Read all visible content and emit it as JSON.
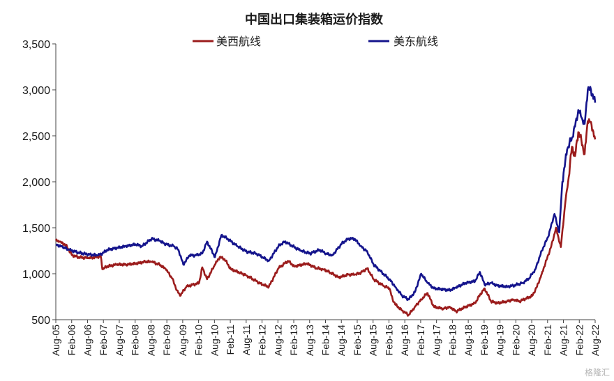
{
  "chart_data": {
    "type": "line",
    "title": "中国出口集装箱运价指数",
    "xlabel": "",
    "ylabel": "",
    "ylim": [
      500,
      3500
    ],
    "yticks": [
      500,
      1000,
      1500,
      2000,
      2500,
      3000,
      3500
    ],
    "ytick_labels": [
      "500",
      "1,000",
      "1,500",
      "2,000",
      "2,500",
      "3,000",
      "3,500"
    ],
    "x_range": [
      2005.583,
      2022.583
    ],
    "xticks": [
      2005.583,
      2006.083,
      2006.583,
      2007.083,
      2007.583,
      2008.083,
      2008.583,
      2009.083,
      2009.583,
      2010.083,
      2010.583,
      2011.083,
      2011.583,
      2012.083,
      2012.583,
      2013.083,
      2013.583,
      2014.083,
      2014.583,
      2015.083,
      2015.583,
      2016.083,
      2016.583,
      2017.083,
      2017.583,
      2018.083,
      2018.583,
      2019.083,
      2019.583,
      2020.083,
      2020.583,
      2021.083,
      2021.583,
      2022.083,
      2022.583
    ],
    "xtick_labels": [
      "Aug-05",
      "Feb-06",
      "Aug-06",
      "Feb-07",
      "Aug-07",
      "Feb-08",
      "Aug-08",
      "Feb-09",
      "Aug-09",
      "Feb-10",
      "Aug-10",
      "Feb-11",
      "Aug-11",
      "Feb-12",
      "Aug-12",
      "Feb-13",
      "Aug-13",
      "Feb-14",
      "Aug-14",
      "Feb-15",
      "Aug-15",
      "Feb-16",
      "Aug-16",
      "Feb-17",
      "Aug-17",
      "Feb-18",
      "Aug-18",
      "Feb-19",
      "Aug-19",
      "Feb-20",
      "Aug-20",
      "Feb-21",
      "Aug-21",
      "Feb-22",
      "Aug-22"
    ],
    "grid": false,
    "legend_position": "top",
    "series": [
      {
        "name": "美西航线",
        "color": "#9b1c1c",
        "x": [
          2005.583,
          2005.7,
          2005.9,
          2006.1,
          2006.3,
          2006.6,
          2006.85,
          2007.0,
          2007.05,
          2007.2,
          2007.5,
          2007.8,
          2008.1,
          2008.4,
          2008.6,
          2008.85,
          2009.05,
          2009.25,
          2009.4,
          2009.5,
          2009.7,
          2009.9,
          2010.1,
          2010.2,
          2010.35,
          2010.6,
          2010.75,
          2010.9,
          2011.1,
          2011.4,
          2011.6,
          2011.9,
          2012.1,
          2012.3,
          2012.6,
          2012.75,
          2012.9,
          2013.1,
          2013.5,
          2013.8,
          2014.0,
          2014.2,
          2014.5,
          2014.8,
          2015.0,
          2015.2,
          2015.4,
          2015.6,
          2015.9,
          2016.1,
          2016.2,
          2016.3,
          2016.5,
          2016.7,
          2016.9,
          2017.1,
          2017.3,
          2017.5,
          2017.8,
          2018.0,
          2018.2,
          2018.5,
          2018.8,
          2018.95,
          2019.1,
          2019.3,
          2019.5,
          2019.8,
          2020.0,
          2020.2,
          2020.4,
          2020.6,
          2020.75,
          2020.9,
          2021.05,
          2021.2,
          2021.35,
          2021.5,
          2021.65,
          2021.75,
          2021.85,
          2021.95,
          2022.05,
          2022.15,
          2022.25,
          2022.35,
          2022.45,
          2022.583
        ],
        "values": [
          1360,
          1350,
          1310,
          1200,
          1180,
          1170,
          1180,
          1190,
          1050,
          1080,
          1100,
          1100,
          1110,
          1130,
          1130,
          1100,
          1050,
          950,
          820,
          760,
          860,
          880,
          900,
          1070,
          940,
          1100,
          1180,
          1160,
          1050,
          1010,
          980,
          920,
          880,
          860,
          1060,
          1100,
          1140,
          1080,
          1110,
          1060,
          1050,
          1020,
          960,
          990,
          990,
          1010,
          1060,
          940,
          870,
          840,
          720,
          660,
          600,
          550,
          640,
          720,
          790,
          640,
          620,
          640,
          590,
          640,
          680,
          770,
          840,
          700,
          680,
          700,
          720,
          700,
          730,
          760,
          860,
          1000,
          1150,
          1300,
          1500,
          1290,
          1800,
          2050,
          2380,
          2280,
          2540,
          2450,
          2300,
          2660,
          2650,
          2460
        ]
      },
      {
        "name": "美东航线",
        "color": "#14148c",
        "x": [
          2005.583,
          2005.8,
          2006.0,
          2006.3,
          2006.6,
          2006.9,
          2007.05,
          2007.2,
          2007.5,
          2007.8,
          2008.1,
          2008.3,
          2008.6,
          2008.85,
          2009.05,
          2009.3,
          2009.45,
          2009.6,
          2009.8,
          2010.0,
          2010.2,
          2010.35,
          2010.6,
          2010.8,
          2011.0,
          2011.3,
          2011.6,
          2011.9,
          2012.1,
          2012.3,
          2012.6,
          2012.8,
          2013.0,
          2013.3,
          2013.6,
          2013.9,
          2014.1,
          2014.3,
          2014.6,
          2014.8,
          2015.0,
          2015.2,
          2015.4,
          2015.6,
          2015.9,
          2016.1,
          2016.3,
          2016.5,
          2016.7,
          2016.9,
          2017.1,
          2017.3,
          2017.5,
          2017.8,
          2018.0,
          2018.2,
          2018.5,
          2018.8,
          2018.95,
          2019.1,
          2019.3,
          2019.5,
          2019.8,
          2020.0,
          2020.3,
          2020.5,
          2020.7,
          2020.9,
          2021.1,
          2021.3,
          2021.45,
          2021.55,
          2021.7,
          2021.85,
          2021.95,
          2022.05,
          2022.15,
          2022.25,
          2022.35,
          2022.45,
          2022.583
        ],
        "values": [
          1320,
          1290,
          1260,
          1230,
          1210,
          1200,
          1220,
          1260,
          1280,
          1300,
          1320,
          1300,
          1380,
          1360,
          1320,
          1300,
          1260,
          1100,
          1200,
          1200,
          1220,
          1350,
          1180,
          1420,
          1380,
          1300,
          1240,
          1220,
          1180,
          1140,
          1300,
          1350,
          1310,
          1250,
          1220,
          1260,
          1220,
          1200,
          1330,
          1380,
          1380,
          1300,
          1240,
          1100,
          1000,
          940,
          850,
          760,
          720,
          800,
          1000,
          900,
          840,
          830,
          820,
          850,
          900,
          920,
          1020,
          880,
          900,
          870,
          860,
          870,
          900,
          950,
          1050,
          1250,
          1400,
          1650,
          1450,
          2000,
          2350,
          2480,
          2600,
          2780,
          2700,
          2630,
          3000,
          3000,
          2860
        ]
      }
    ]
  },
  "watermark": "格隆汇"
}
